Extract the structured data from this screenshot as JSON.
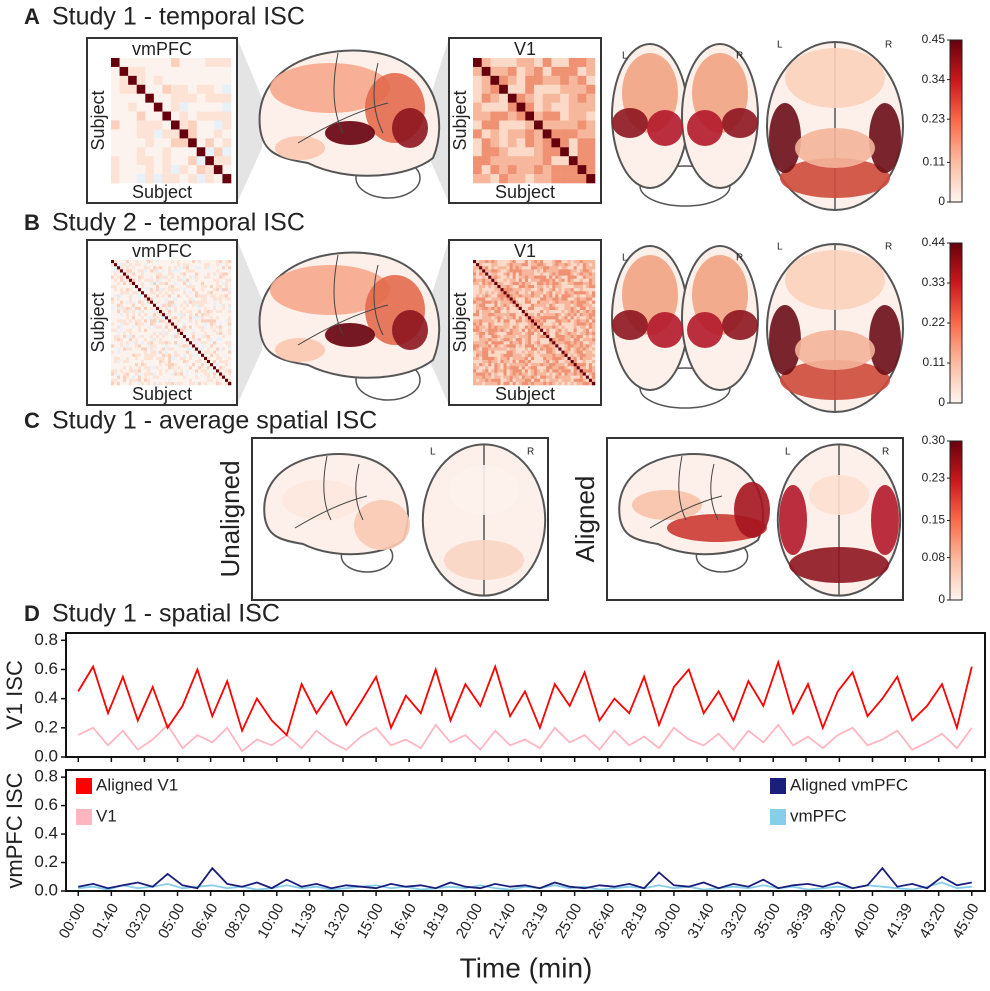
{
  "colormap": [
    "#fff5f0",
    "#fcbba1",
    "#fb6a4a",
    "#cb181d",
    "#67000d"
  ],
  "panels": [
    {
      "letter": "A",
      "title": "Study 1 - temporal ISC",
      "matrices": [
        {
          "title": "vmPFC",
          "xlabel": "Subject",
          "ylabel": "Subject"
        },
        {
          "title": "V1",
          "xlabel": "Subject",
          "ylabel": "Subject"
        }
      ],
      "brain_labels": [
        [
          "L",
          "R"
        ],
        [
          "L",
          "R"
        ]
      ],
      "colorbar": {
        "ylim": [
          0,
          0.45
        ],
        "yticks": [
          0,
          0.11,
          0.23,
          0.34,
          0.45
        ]
      }
    },
    {
      "letter": "B",
      "title": "Study 2 - temporal ISC",
      "matrices": [
        {
          "title": "vmPFC",
          "xlabel": "Subject",
          "ylabel": "Subject"
        },
        {
          "title": "V1",
          "xlabel": "Subject",
          "ylabel": "Subject"
        }
      ],
      "brain_labels": [
        [
          "L",
          "R"
        ],
        [
          "L",
          "R"
        ]
      ],
      "colorbar": {
        "ylim": [
          0,
          0.44
        ],
        "yticks": [
          0,
          0.11,
          0.22,
          0.33,
          0.44
        ]
      }
    },
    {
      "letter": "C",
      "title": "Study 1 - average spatial ISC",
      "conditions": [
        "Unaligned",
        "Aligned"
      ],
      "brain_labels": [
        [
          "L",
          "R"
        ],
        [
          "L",
          "R"
        ]
      ],
      "colorbar": {
        "ylim": [
          0,
          0.3
        ],
        "yticks": [
          0,
          0.08,
          0.15,
          0.23,
          {
            "value": 0.3,
            "label": "0.30"
          }
        ]
      }
    }
  ],
  "chart_data": {
    "type": "line",
    "letter": "D",
    "title": "Study 1 - spatial ISC",
    "xlabel": "Time (min)",
    "x": [
      0,
      45,
      90,
      135,
      180,
      225,
      270,
      315,
      360,
      405,
      450,
      495,
      540,
      585,
      630,
      675,
      720,
      765,
      810,
      855,
      900,
      945,
      990,
      1035,
      1080,
      1125,
      1170,
      1215,
      1260,
      1305,
      1350,
      1395,
      1440,
      1485,
      1530,
      1575,
      1620,
      1665,
      1710,
      1755,
      1800,
      1845,
      1890,
      1935,
      1980,
      2025,
      2070,
      2115,
      2160,
      2205,
      2250,
      2295,
      2340,
      2385,
      2430,
      2475,
      2520,
      2565,
      2610,
      2655,
      2700
    ],
    "xlim": [
      -37,
      2740
    ],
    "xticks": [
      {
        "value": 0,
        "label": "00:00"
      },
      {
        "value": 100,
        "label": "01:40"
      },
      {
        "value": 200,
        "label": "03:20"
      },
      {
        "value": 300,
        "label": "05:00"
      },
      {
        "value": 400,
        "label": "06:40"
      },
      {
        "value": 500,
        "label": "08:20"
      },
      {
        "value": 600,
        "label": "10:00"
      },
      {
        "value": 699,
        "label": "11:39"
      },
      {
        "value": 800,
        "label": "13:20"
      },
      {
        "value": 900,
        "label": "15:00"
      },
      {
        "value": 1000,
        "label": "16:40"
      },
      {
        "value": 1099,
        "label": "18:19"
      },
      {
        "value": 1200,
        "label": "20:00"
      },
      {
        "value": 1300,
        "label": "21:40"
      },
      {
        "value": 1399,
        "label": "23:19"
      },
      {
        "value": 1500,
        "label": "25:00"
      },
      {
        "value": 1600,
        "label": "26:40"
      },
      {
        "value": 1699,
        "label": "28:19"
      },
      {
        "value": 1800,
        "label": "30:00"
      },
      {
        "value": 1900,
        "label": "31:40"
      },
      {
        "value": 2000,
        "label": "33:20"
      },
      {
        "value": 2100,
        "label": "35:00"
      },
      {
        "value": 2199,
        "label": "36:39"
      },
      {
        "value": 2300,
        "label": "38:20"
      },
      {
        "value": 2400,
        "label": "40:00"
      },
      {
        "value": 2499,
        "label": "41:39"
      },
      {
        "value": 2600,
        "label": "43:20"
      },
      {
        "value": 2700,
        "label": "45:00"
      }
    ],
    "subplots": [
      {
        "ylabel": "V1 ISC",
        "ylim": [
          0,
          0.85
        ],
        "yticks": [
          {
            "value": 0,
            "label": "0.0"
          },
          0.2,
          0.4,
          0.6,
          0.8
        ],
        "legend_loc": "upper left",
        "series": [
          {
            "name": "Aligned V1",
            "color": "#ff0000",
            "values": [
              0.45,
              0.62,
              0.3,
              0.55,
              0.25,
              0.48,
              0.2,
              0.35,
              0.6,
              0.28,
              0.52,
              0.18,
              0.4,
              0.25,
              0.15,
              0.5,
              0.3,
              0.45,
              0.22,
              0.38,
              0.55,
              0.2,
              0.42,
              0.3,
              0.6,
              0.25,
              0.5,
              0.35,
              0.62,
              0.28,
              0.45,
              0.2,
              0.5,
              0.35,
              0.58,
              0.25,
              0.4,
              0.3,
              0.55,
              0.22,
              0.48,
              0.6,
              0.3,
              0.45,
              0.25,
              0.52,
              0.35,
              0.65,
              0.3,
              0.5,
              0.2,
              0.45,
              0.58,
              0.28,
              0.4,
              0.55,
              0.25,
              0.35,
              0.5,
              0.2,
              0.62
            ]
          },
          {
            "name": "V1",
            "color": "#ffb6c1",
            "values": [
              0.15,
              0.2,
              0.08,
              0.18,
              0.05,
              0.12,
              0.22,
              0.06,
              0.15,
              0.1,
              0.2,
              0.04,
              0.12,
              0.08,
              0.15,
              0.06,
              0.18,
              0.1,
              0.05,
              0.14,
              0.2,
              0.08,
              0.12,
              0.06,
              0.22,
              0.1,
              0.15,
              0.05,
              0.18,
              0.08,
              0.12,
              0.06,
              0.2,
              0.1,
              0.15,
              0.05,
              0.18,
              0.08,
              0.14,
              0.06,
              0.2,
              0.12,
              0.08,
              0.16,
              0.05,
              0.18,
              0.1,
              0.22,
              0.08,
              0.14,
              0.06,
              0.15,
              0.2,
              0.08,
              0.12,
              0.18,
              0.05,
              0.1,
              0.16,
              0.06,
              0.2
            ]
          }
        ]
      },
      {
        "ylabel": "vmPFC ISC",
        "ylim": [
          0,
          0.85
        ],
        "yticks": [
          {
            "value": 0,
            "label": "0.0"
          },
          0.2,
          0.4,
          0.6,
          0.8
        ],
        "legend_loc": "upper right",
        "series": [
          {
            "name": "Aligned vmPFC",
            "color": "#1a1f7a",
            "values": [
              0.03,
              0.05,
              0.02,
              0.04,
              0.06,
              0.03,
              0.12,
              0.04,
              0.02,
              0.16,
              0.05,
              0.03,
              0.06,
              0.02,
              0.08,
              0.03,
              0.05,
              0.02,
              0.04,
              0.03,
              0.02,
              0.05,
              0.03,
              0.04,
              0.02,
              0.06,
              0.03,
              0.02,
              0.05,
              0.03,
              0.04,
              0.02,
              0.06,
              0.03,
              0.02,
              0.04,
              0.03,
              0.05,
              0.02,
              0.13,
              0.04,
              0.03,
              0.06,
              0.02,
              0.05,
              0.03,
              0.08,
              0.02,
              0.04,
              0.05,
              0.03,
              0.06,
              0.02,
              0.04,
              0.16,
              0.03,
              0.05,
              0.02,
              0.1,
              0.04,
              0.06
            ]
          },
          {
            "name": "vmPFC",
            "color": "#87ceeb",
            "values": [
              0.02,
              0.03,
              0.01,
              0.04,
              0.02,
              0.03,
              0.05,
              0.02,
              0.03,
              0.04,
              0.02,
              0.03,
              0.01,
              0.02,
              0.04,
              0.02,
              0.03,
              0.01,
              0.02,
              0.03,
              0.04,
              0.02,
              0.03,
              0.01,
              0.02,
              0.03,
              0.02,
              0.04,
              0.02,
              0.01,
              0.03,
              0.02,
              0.04,
              0.02,
              0.03,
              0.01,
              0.02,
              0.03,
              0.02,
              0.04,
              0.02,
              0.03,
              0.01,
              0.02,
              0.03,
              0.02,
              0.04,
              0.02,
              0.03,
              0.01,
              0.02,
              0.03,
              0.02,
              0.04,
              0.03,
              0.02,
              0.01,
              0.03,
              0.06,
              0.02,
              0.03
            ]
          }
        ]
      }
    ]
  }
}
